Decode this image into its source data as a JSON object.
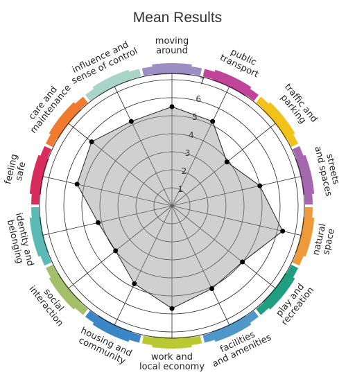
{
  "chart_data": {
    "type": "radar",
    "title": "Mean Results",
    "rlim": [
      0,
      7
    ],
    "ticks": [
      1,
      2,
      3,
      4,
      5,
      6,
      7
    ],
    "grid": true,
    "categories": [
      {
        "lines": [
          "moving",
          "around"
        ],
        "value": 5.5,
        "color": "#9b8fc4"
      },
      {
        "lines": [
          "public",
          "transport"
        ],
        "value": 5.2,
        "color": "#c0449a"
      },
      {
        "lines": [
          "traffic and",
          "parking"
        ],
        "value": 3.9,
        "color": "#f2c21b"
      },
      {
        "lines": [
          "streets",
          "and spaces"
        ],
        "value": 5.0,
        "color": "#a567ad"
      },
      {
        "lines": [
          "natural",
          "space"
        ],
        "value": 6.3,
        "color": "#ee9a3b"
      },
      {
        "lines": [
          "play and",
          "recreation"
        ],
        "value": 5.0,
        "color": "#1f9e80"
      },
      {
        "lines": [
          "facilities",
          "and amenities"
        ],
        "value": 5.1,
        "color": "#4f96c9"
      },
      {
        "lines": [
          "work and",
          "local economy"
        ],
        "value": 5.7,
        "color": "#b9c833"
      },
      {
        "lines": [
          "housing and",
          "community"
        ],
        "value": 4.8,
        "color": "#3b86c7"
      },
      {
        "lines": [
          "social",
          "interaction"
        ],
        "value": 4.0,
        "color": "#a3bf6a"
      },
      {
        "lines": [
          "identity and",
          "belonging"
        ],
        "value": 4.2,
        "color": "#5bbab5"
      },
      {
        "lines": [
          "feeling",
          "safe"
        ],
        "value": 5.4,
        "color": "#d82c5c"
      },
      {
        "lines": [
          "care and",
          "maintenance"
        ],
        "value": 5.7,
        "color": "#ef7a30"
      },
      {
        "lines": [
          "influence and",
          "sense of control"
        ],
        "value": 5.2,
        "color": "#a9d4c8"
      }
    ]
  }
}
